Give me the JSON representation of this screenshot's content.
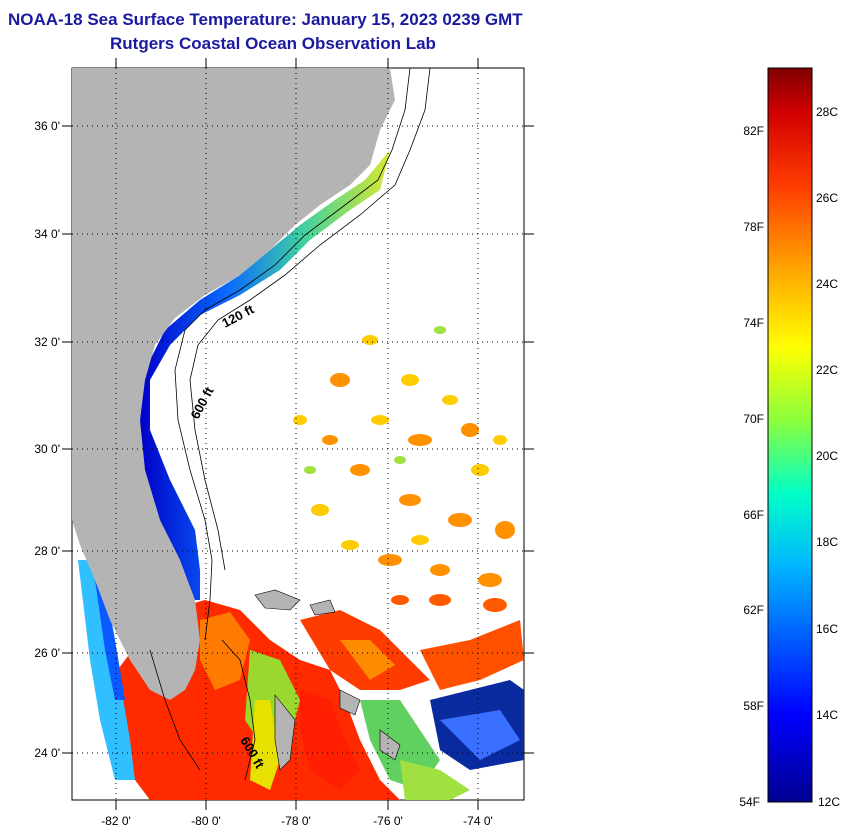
{
  "title": {
    "line1": "NOAA-18 Sea Surface Temperature:  January 15, 2023 0239 GMT",
    "line2": "Rutgers Coastal Ocean Observation Lab"
  },
  "map": {
    "lat_ticks": [
      "36 0'",
      "34 0'",
      "32 0'",
      "30 0'",
      "28 0'",
      "26 0'",
      "24 0'"
    ],
    "lon_ticks": [
      "-82 0'",
      "-80 0'",
      "-78 0'",
      "-76 0'",
      "-74 0'"
    ],
    "lat_range": [
      23,
      37
    ],
    "lon_range": [
      -83,
      -73
    ],
    "contour_labels": [
      "120 ft",
      "600 ft",
      "600 ft"
    ],
    "land_color": "#b4b4b4",
    "grid": "dotted"
  },
  "colorbar": {
    "fahrenheit": [
      "82F",
      "78F",
      "74F",
      "70F",
      "66F",
      "62F",
      "58F",
      "54F"
    ],
    "celsius": [
      "28C",
      "26C",
      "24C",
      "22C",
      "20C",
      "18C",
      "16C",
      "14C",
      "12C"
    ],
    "range_c": [
      12,
      29.5
    ]
  }
}
